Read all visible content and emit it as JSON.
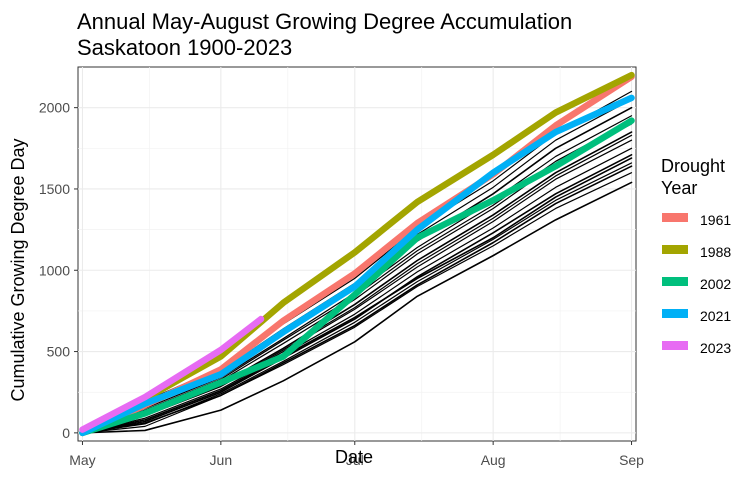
{
  "chart_data": {
    "type": "line",
    "title": [
      "Annual May-August Growing Degree Accumulation",
      "Saskatoon 1900-2023"
    ],
    "xlabel": "Date",
    "ylabel": "Cumulative Growing Degree Day",
    "x_ticks": [
      "May",
      "Jun",
      "Jul",
      "Aug",
      "Sep"
    ],
    "y_ticks": [
      0,
      500,
      1000,
      1500,
      2000
    ],
    "ylim": [
      -50,
      2250
    ],
    "grid": true,
    "legend": {
      "title": [
        "Drought",
        "Year"
      ],
      "placement": "right",
      "items": [
        {
          "name": "1961",
          "color": "#F8766D"
        },
        {
          "name": "1988",
          "color": "#A3A500"
        },
        {
          "name": "2002",
          "color": "#00BF7D"
        },
        {
          "name": "2021",
          "color": "#00B0F6"
        },
        {
          "name": "2023",
          "color": "#E76BF3"
        }
      ]
    },
    "background_series_note": "",
    "background_series": [
      {
        "x": [
          "2023-05-01",
          "2023-05-15",
          "2023-06-01",
          "2023-06-15",
          "2023-07-01",
          "2023-07-15",
          "2023-08-01",
          "2023-08-15",
          "2023-09-01"
        ],
        "values": [
          0,
          15,
          140,
          320,
          560,
          840,
          1090,
          1310,
          1540
        ]
      },
      {
        "x": [
          "2023-05-01",
          "2023-05-15",
          "2023-06-01",
          "2023-06-15",
          "2023-07-01",
          "2023-07-15",
          "2023-08-01",
          "2023-08-15",
          "2023-09-01"
        ],
        "values": [
          0,
          40,
          230,
          420,
          650,
          900,
          1150,
          1380,
          1600
        ]
      },
      {
        "x": [
          "2023-05-01",
          "2023-05-15",
          "2023-06-01",
          "2023-06-15",
          "2023-07-01",
          "2023-07-15",
          "2023-08-01",
          "2023-08-15",
          "2023-09-01"
        ],
        "values": [
          0,
          55,
          240,
          440,
          680,
          930,
          1190,
          1430,
          1660
        ]
      },
      {
        "x": [
          "2023-05-01",
          "2023-05-15",
          "2023-06-01",
          "2023-06-15",
          "2023-07-01",
          "2023-07-15",
          "2023-08-01",
          "2023-08-15",
          "2023-09-01"
        ],
        "values": [
          0,
          70,
          250,
          460,
          700,
          960,
          1230,
          1470,
          1710
        ]
      },
      {
        "x": [
          "2023-05-01",
          "2023-05-15",
          "2023-06-01",
          "2023-06-15",
          "2023-07-01",
          "2023-07-15",
          "2023-08-01",
          "2023-08-15",
          "2023-09-01"
        ],
        "values": [
          0,
          90,
          270,
          480,
          730,
          990,
          1260,
          1510,
          1750
        ]
      },
      {
        "x": [
          "2023-05-01",
          "2023-05-15",
          "2023-06-01",
          "2023-06-15",
          "2023-07-01",
          "2023-07-15",
          "2023-08-01",
          "2023-08-15",
          "2023-09-01"
        ],
        "values": [
          0,
          105,
          285,
          500,
          760,
          1020,
          1300,
          1560,
          1800
        ]
      },
      {
        "x": [
          "2023-05-01",
          "2023-05-15",
          "2023-06-01",
          "2023-06-15",
          "2023-07-01",
          "2023-07-15",
          "2023-08-01",
          "2023-08-15",
          "2023-09-01"
        ],
        "values": [
          0,
          120,
          300,
          520,
          790,
          1060,
          1340,
          1600,
          1850
        ]
      },
      {
        "x": [
          "2023-05-01",
          "2023-05-15",
          "2023-06-01",
          "2023-06-15",
          "2023-07-01",
          "2023-07-15",
          "2023-08-01",
          "2023-08-15",
          "2023-09-01"
        ],
        "values": [
          0,
          135,
          320,
          550,
          820,
          1100,
          1380,
          1650,
          1900
        ]
      },
      {
        "x": [
          "2023-05-01",
          "2023-05-15",
          "2023-06-01",
          "2023-06-15",
          "2023-07-01",
          "2023-07-15",
          "2023-08-01",
          "2023-08-15",
          "2023-09-01"
        ],
        "values": [
          0,
          150,
          340,
          580,
          860,
          1140,
          1430,
          1700,
          1950
        ]
      },
      {
        "x": [
          "2023-05-01",
          "2023-05-15",
          "2023-06-01",
          "2023-06-15",
          "2023-07-01",
          "2023-07-15",
          "2023-08-01",
          "2023-08-15",
          "2023-09-01"
        ],
        "values": [
          0,
          170,
          360,
          610,
          890,
          1180,
          1470,
          1750,
          2000
        ]
      },
      {
        "x": [
          "2023-05-01",
          "2023-05-15",
          "2023-06-01",
          "2023-06-15",
          "2023-07-01",
          "2023-07-15",
          "2023-08-01",
          "2023-08-15",
          "2023-09-01"
        ],
        "values": [
          0,
          185,
          380,
          640,
          920,
          1220,
          1510,
          1800,
          2050
        ]
      },
      {
        "x": [
          "2023-05-01",
          "2023-05-15",
          "2023-06-01",
          "2023-06-15",
          "2023-07-01",
          "2023-07-15",
          "2023-08-01",
          "2023-08-15",
          "2023-09-01"
        ],
        "values": [
          0,
          195,
          400,
          670,
          950,
          1260,
          1550,
          1840,
          2100
        ]
      },
      {
        "x": [
          "2023-05-01",
          "2023-05-15",
          "2023-06-01",
          "2023-06-15",
          "2023-07-01",
          "2023-07-15",
          "2023-08-01",
          "2023-08-15",
          "2023-09-01"
        ],
        "values": [
          0,
          80,
          260,
          470,
          710,
          950,
          1200,
          1450,
          1690
        ]
      },
      {
        "x": [
          "2023-05-01",
          "2023-05-15",
          "2023-06-01",
          "2023-06-15",
          "2023-07-01",
          "2023-07-15",
          "2023-08-01",
          "2023-08-15",
          "2023-09-01"
        ],
        "values": [
          0,
          110,
          290,
          510,
          770,
          1040,
          1320,
          1580,
          1830
        ]
      },
      {
        "x": [
          "2023-05-01",
          "2023-05-15",
          "2023-06-01",
          "2023-06-15",
          "2023-07-01",
          "2023-07-15",
          "2023-08-01",
          "2023-08-15",
          "2023-09-01"
        ],
        "values": [
          0,
          140,
          330,
          570,
          840,
          1120,
          1400,
          1670,
          1920
        ]
      },
      {
        "x": [
          "2023-05-01",
          "2023-05-15",
          "2023-06-01",
          "2023-06-15",
          "2023-07-01",
          "2023-07-15",
          "2023-08-01",
          "2023-08-15",
          "2023-09-01"
        ],
        "values": [
          0,
          60,
          230,
          430,
          660,
          910,
          1170,
          1410,
          1640
        ]
      }
    ],
    "series": [
      {
        "name": "1961",
        "color": "#F8766D",
        "x": [
          "2023-05-01",
          "2023-05-15",
          "2023-06-01",
          "2023-06-15",
          "2023-07-01",
          "2023-07-15",
          "2023-08-01",
          "2023-08-15",
          "2023-09-01"
        ],
        "values": [
          0,
          170,
          390,
          690,
          980,
          1290,
          1590,
          1890,
          2190
        ]
      },
      {
        "name": "1988",
        "color": "#A3A500",
        "x": [
          "2023-05-01",
          "2023-05-15",
          "2023-06-01",
          "2023-06-15",
          "2023-07-01",
          "2023-07-15",
          "2023-08-01",
          "2023-08-15",
          "2023-09-01"
        ],
        "values": [
          0,
          210,
          470,
          800,
          1110,
          1420,
          1710,
          1970,
          2200
        ]
      },
      {
        "name": "2002",
        "color": "#00BF7D",
        "x": [
          "2023-05-01",
          "2023-05-15",
          "2023-06-01",
          "2023-06-15",
          "2023-07-01",
          "2023-07-15",
          "2023-08-01",
          "2023-08-15",
          "2023-09-01"
        ],
        "values": [
          0,
          120,
          310,
          470,
          850,
          1200,
          1430,
          1640,
          1920
        ]
      },
      {
        "name": "2021",
        "color": "#00B0F6",
        "x": [
          "2023-05-01",
          "2023-05-15",
          "2023-06-01",
          "2023-06-15",
          "2023-07-01",
          "2023-07-15",
          "2023-08-01",
          "2023-08-15",
          "2023-09-01"
        ],
        "values": [
          0,
          180,
          360,
          620,
          900,
          1250,
          1600,
          1850,
          2060
        ]
      },
      {
        "name": "2023",
        "color": "#E76BF3",
        "x": [
          "2023-05-01",
          "2023-05-15",
          "2023-06-01",
          "2023-06-10"
        ],
        "values": [
          20,
          220,
          510,
          700
        ]
      }
    ]
  }
}
